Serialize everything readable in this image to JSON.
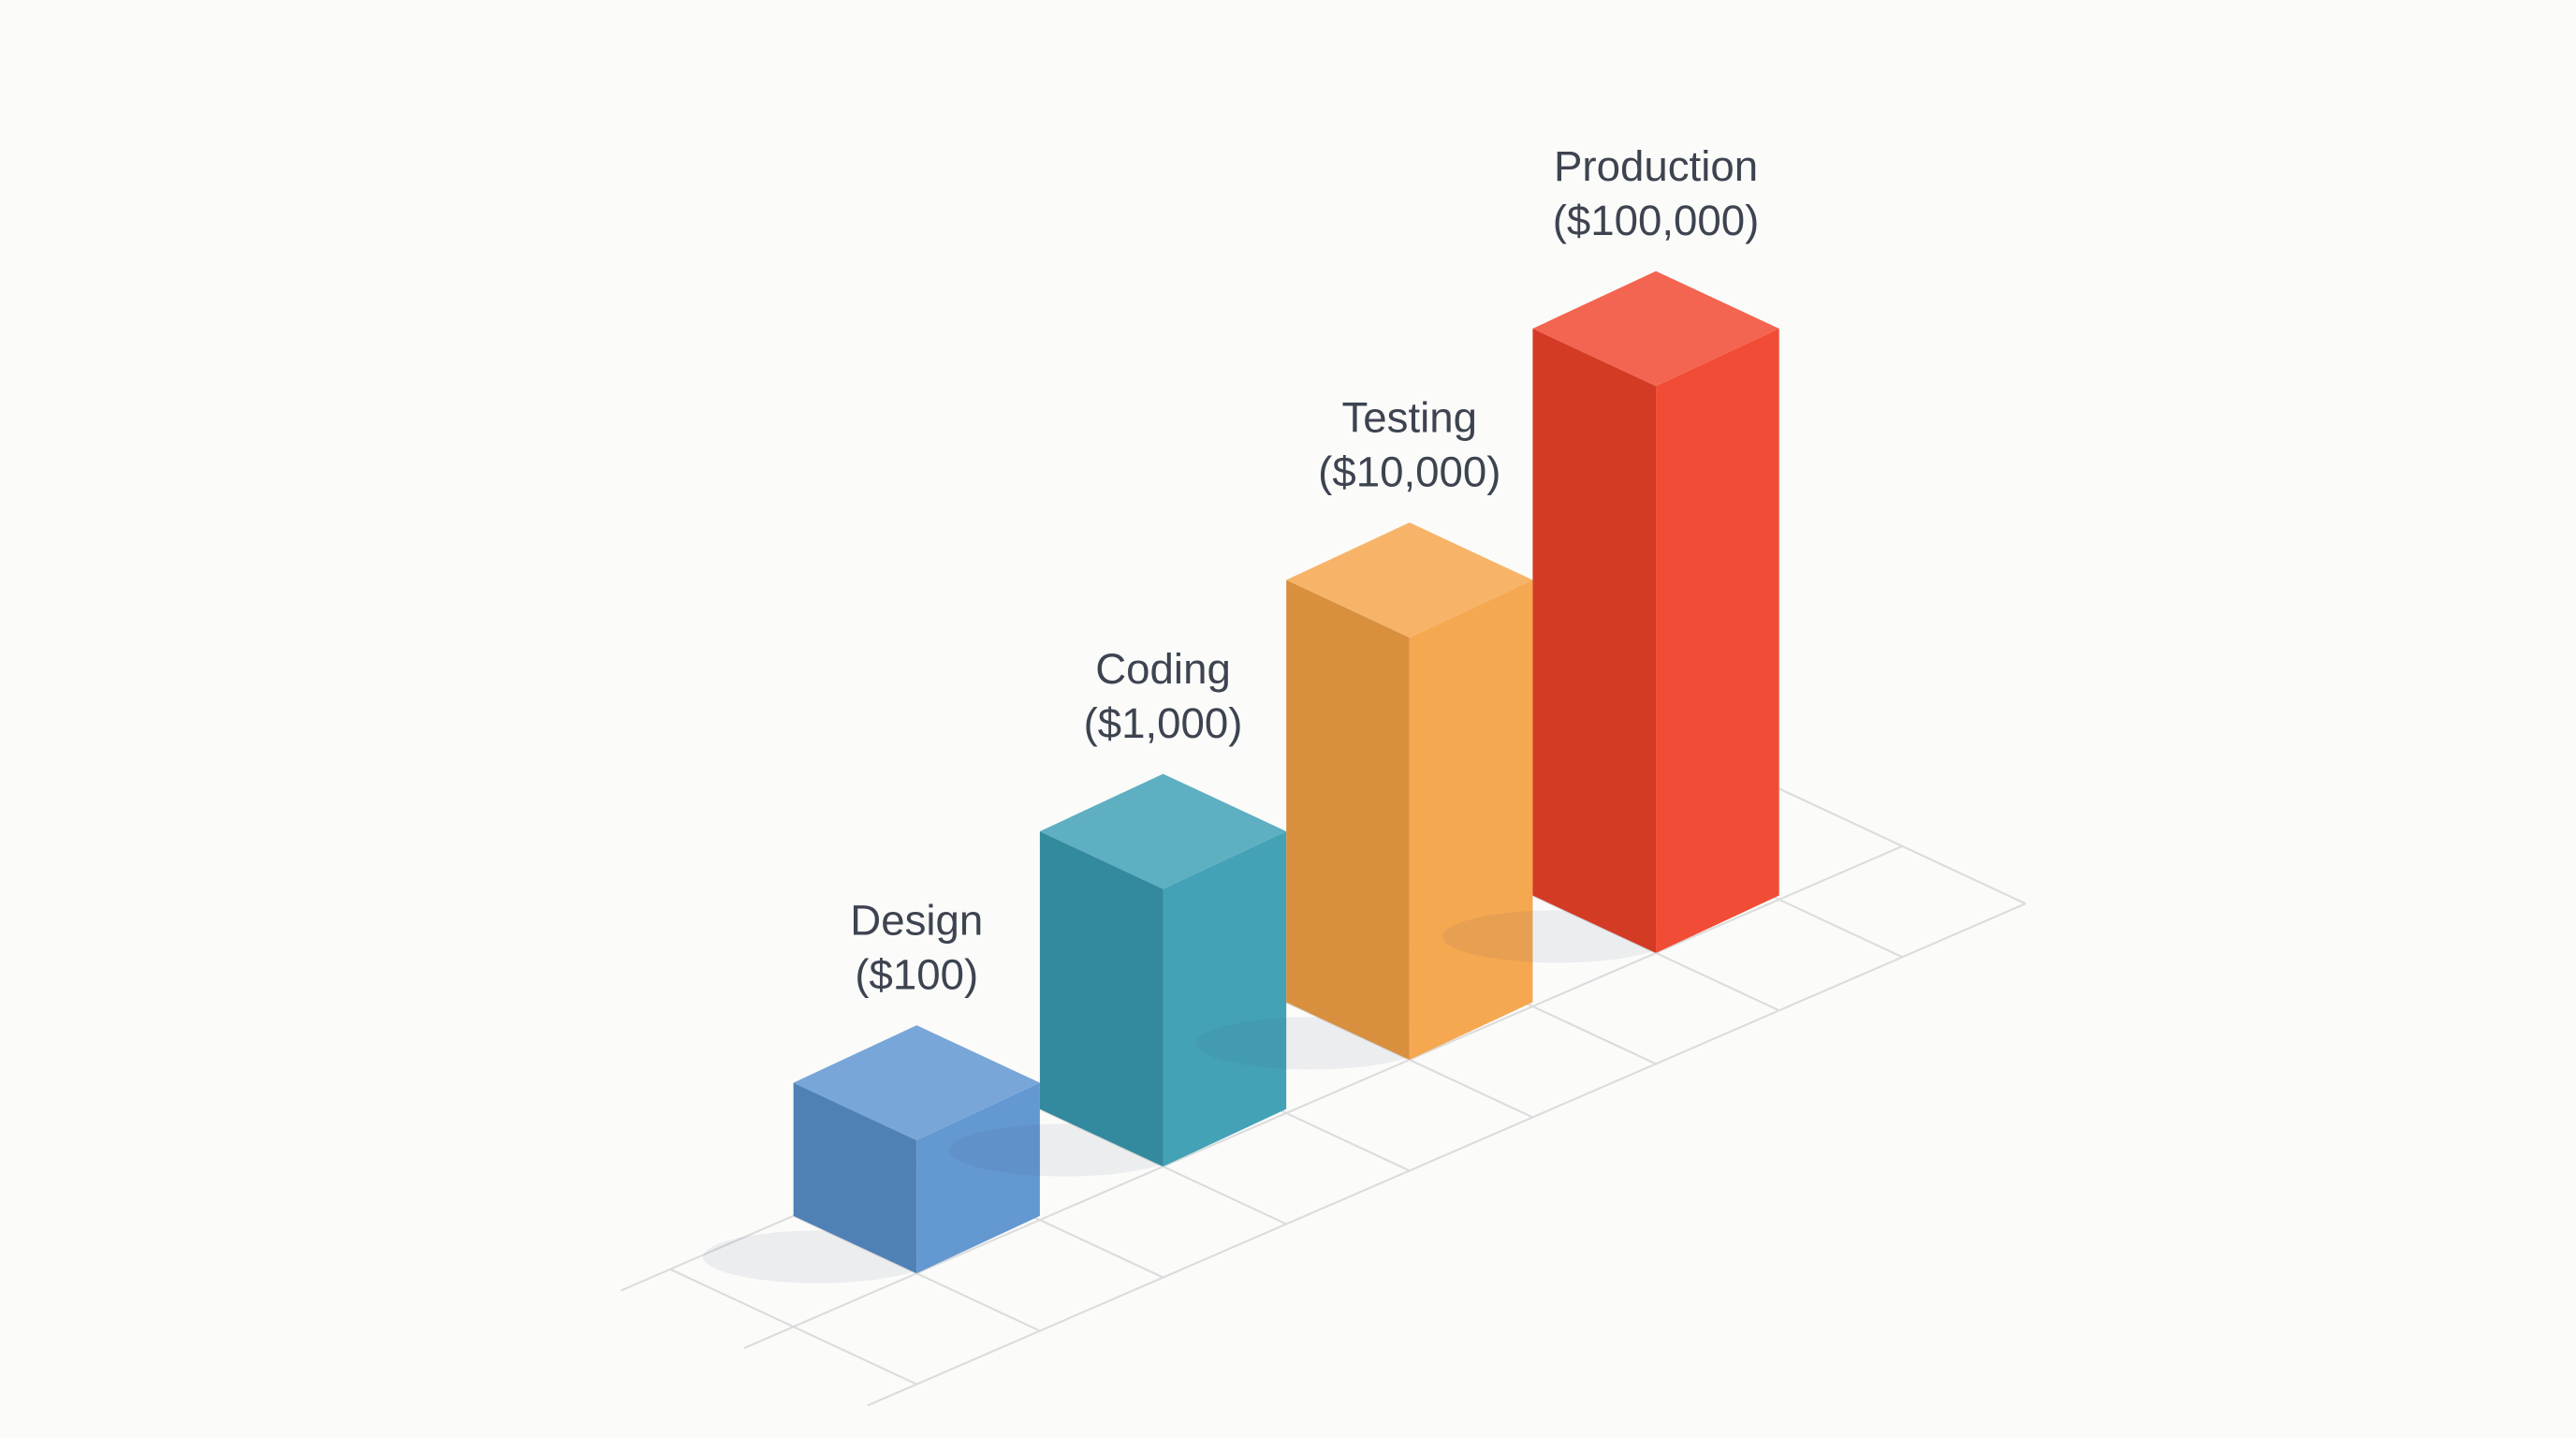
{
  "chart_data": {
    "type": "bar",
    "categories": [
      "Design",
      "Coding",
      "Testing",
      "Production"
    ],
    "values": [
      100,
      1000,
      10000,
      100000
    ],
    "value_labels": [
      "($100)",
      "($1,000)",
      "($10,000)",
      "($100,000)"
    ],
    "colors": [
      "#5b93cf",
      "#3a9db3",
      "#f5a347",
      "#f0432a"
    ],
    "log_scale": true
  }
}
